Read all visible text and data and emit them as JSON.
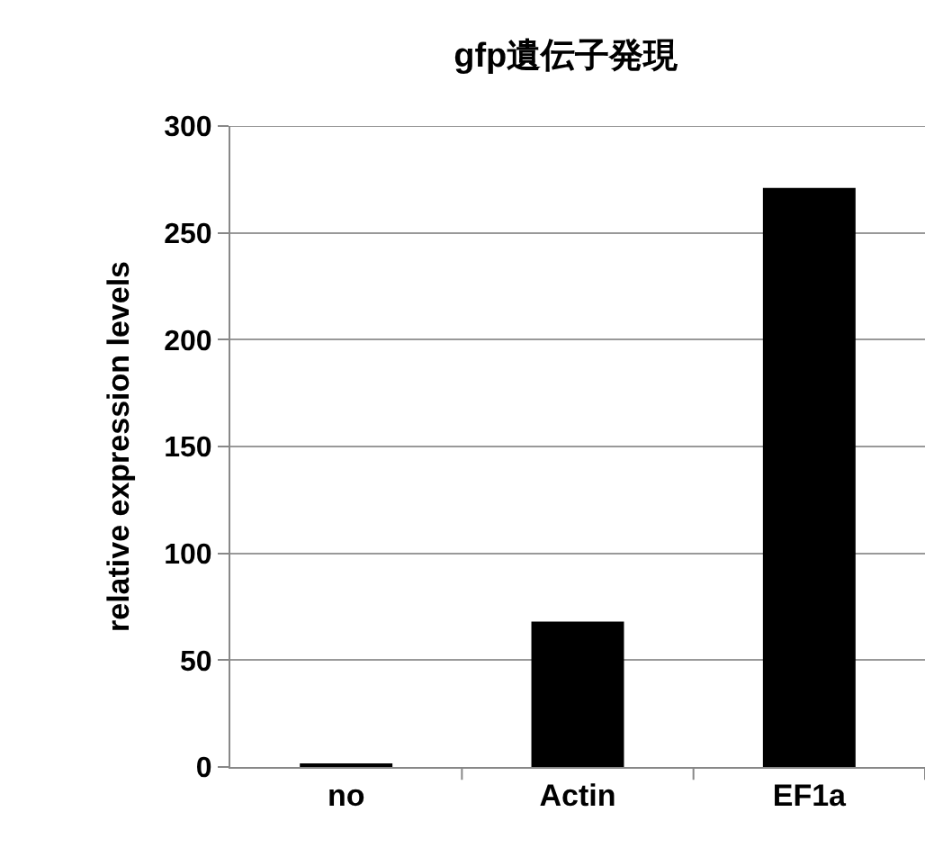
{
  "chart_data": {
    "type": "bar",
    "title": "gfp遺伝子発現",
    "ylabel": "relative expression levels",
    "categories": [
      "no",
      "Actin",
      "EF1a"
    ],
    "values": [
      1,
      68,
      271
    ],
    "color": "#000000",
    "ylim": [
      0,
      300
    ],
    "yticks": [
      0,
      50,
      100,
      150,
      200,
      250,
      300
    ],
    "grid": "y"
  }
}
